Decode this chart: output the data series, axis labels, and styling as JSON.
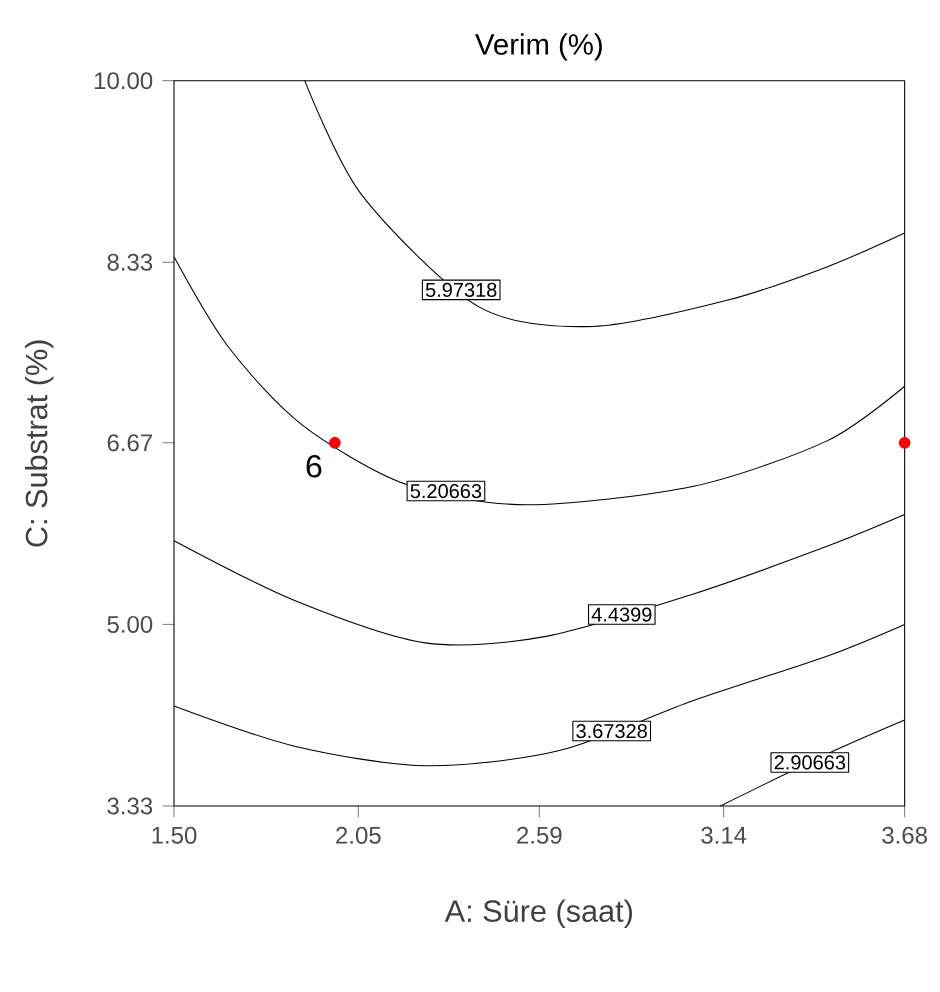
{
  "chart_data": {
    "type": "line",
    "title": "Verim (%)",
    "xlabel": "A: Süre (saat)",
    "ylabel": "C: Substrat (%)",
    "xlim": [
      1.5,
      3.68
    ],
    "ylim": [
      3.33,
      10.0
    ],
    "xticks": [
      {
        "value": 1.5,
        "label": "1.50"
      },
      2.05,
      2.59,
      3.14,
      3.68
    ],
    "yticks": [
      3.33,
      {
        "value": 5.0,
        "label": "5.00"
      },
      6.67,
      8.33,
      {
        "value": 10.0,
        "label": "10.00"
      }
    ],
    "series": [
      {
        "name": "5.97318",
        "color": "#000000",
        "marker": "none",
        "x": [
          1.89,
          2.06,
          2.41,
          2.75,
          3.15,
          3.45,
          3.68
        ],
        "values": [
          10.0,
          8.95,
          7.92,
          7.74,
          7.98,
          8.29,
          8.6
        ]
      },
      {
        "name": "5.20663",
        "color": "#000000",
        "marker": "none",
        "x": [
          1.5,
          1.66,
          1.88,
          2.19,
          2.55,
          3.05,
          3.45,
          3.68
        ],
        "values": [
          8.38,
          7.56,
          6.84,
          6.29,
          6.1,
          6.27,
          6.69,
          7.19
        ]
      },
      {
        "name": "4.4399",
        "color": "#000000",
        "marker": "none",
        "x": [
          1.5,
          1.86,
          2.25,
          2.61,
          3.05,
          3.45,
          3.68
        ],
        "values": [
          5.77,
          5.22,
          4.83,
          4.89,
          5.28,
          5.72,
          6.01
        ]
      },
      {
        "name": "3.67328",
        "color": "#000000",
        "marker": "none",
        "x": [
          1.5,
          1.86,
          2.25,
          2.65,
          3.05,
          3.45,
          3.68
        ],
        "values": [
          4.25,
          3.88,
          3.7,
          3.84,
          4.3,
          4.71,
          5.0
        ]
      },
      {
        "name": "2.90663",
        "color": "#000000",
        "marker": "none",
        "x": [
          3.13,
          3.45,
          3.68
        ],
        "values": [
          3.33,
          3.81,
          4.12
        ]
      },
      {
        "type": "scatter",
        "color": "#ff0000",
        "marker": "circle",
        "x": [
          1.98,
          3.68
        ],
        "values": [
          6.67,
          6.67
        ]
      }
    ],
    "annotations": [
      {
        "text": "6",
        "x": 1.98,
        "y": 6.67
      }
    ]
  }
}
